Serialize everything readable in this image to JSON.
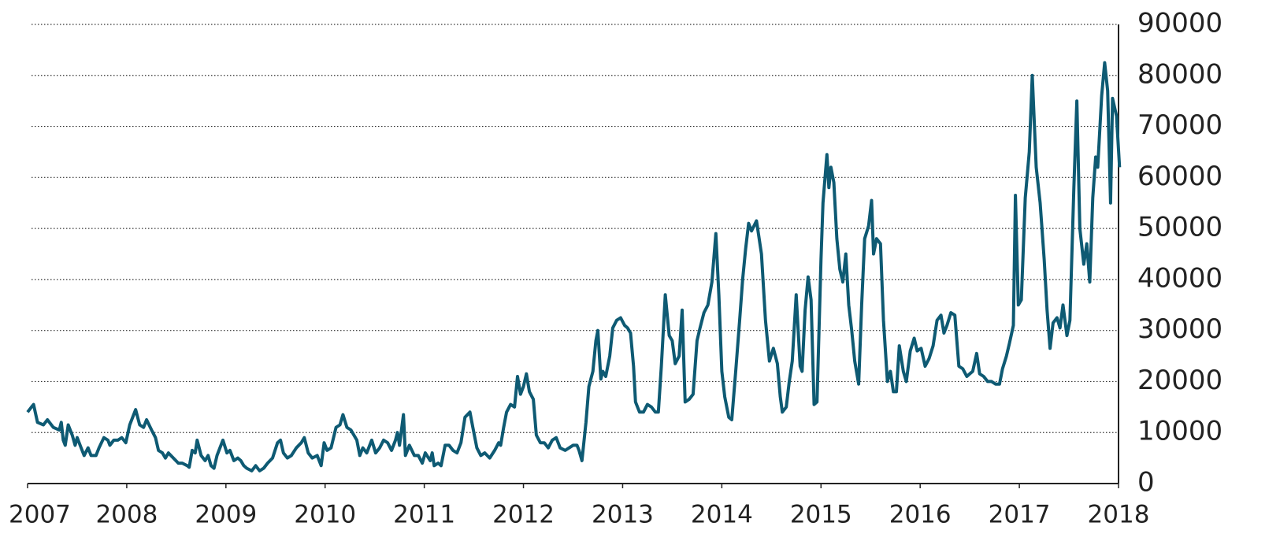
{
  "chart_data": {
    "type": "line",
    "x": [
      2007,
      2007.04,
      2007.06,
      2007.1,
      2007.16,
      2007.2,
      2007.26,
      2007.32,
      2007.34,
      2007.36,
      2007.38,
      2007.41,
      2007.45,
      2007.48,
      2007.5,
      2007.54,
      2007.57,
      2007.61,
      2007.64,
      2007.69,
      2007.72,
      2007.77,
      2007.81,
      2007.83,
      2007.87,
      2007.91,
      2007.95,
      2007.99,
      2008.03,
      2008.09,
      2008.13,
      2008.17,
      2008.2,
      2008.25,
      2008.29,
      2008.32,
      2008.36,
      2008.39,
      2008.42,
      2008.47,
      2008.52,
      2008.56,
      2008.61,
      2008.63,
      2008.66,
      2008.69,
      2008.71,
      2008.75,
      2008.79,
      2008.82,
      2008.85,
      2008.88,
      2008.91,
      2008.97,
      2009.01,
      2009.04,
      2009.08,
      2009.12,
      2009.15,
      2009.18,
      2009.21,
      2009.26,
      2009.3,
      2009.34,
      2009.38,
      2009.42,
      2009.47,
      2009.52,
      2009.55,
      2009.58,
      2009.62,
      2009.66,
      2009.71,
      2009.76,
      2009.79,
      2009.83,
      2009.87,
      2009.92,
      2009.96,
      2009.99,
      2010.02,
      2010.06,
      2010.11,
      2010.15,
      2010.18,
      2010.22,
      2010.26,
      2010.32,
      2010.35,
      2010.38,
      2010.42,
      2010.47,
      2010.51,
      2010.55,
      2010.59,
      2010.63,
      2010.67,
      2010.71,
      2010.73,
      2010.75,
      2010.79,
      2010.81,
      2010.85,
      2010.9,
      2010.94,
      2010.98,
      2011.01,
      2011.06,
      2011.08,
      2011.1,
      2011.14,
      2011.17,
      2011.21,
      2011.25,
      2011.29,
      2011.33,
      2011.37,
      2011.41,
      2011.46,
      2011.49,
      2011.53,
      2011.57,
      2011.61,
      2011.66,
      2011.71,
      2011.75,
      2011.77,
      2011.8,
      2011.83,
      2011.87,
      2011.91,
      2011.94,
      2011.97,
      2012.0,
      2012.03,
      2012.06,
      2012.1,
      2012.13,
      2012.17,
      2012.21,
      2012.25,
      2012.29,
      2012.33,
      2012.37,
      2012.42,
      2012.46,
      2012.5,
      2012.54,
      2012.56,
      2012.59,
      2012.63,
      2012.66,
      2012.7,
      2012.73,
      2012.75,
      2012.78,
      2012.8,
      2012.83,
      2012.87,
      2012.9,
      2012.94,
      2012.98,
      2013.02,
      2013.05,
      2013.08,
      2013.11,
      2013.13,
      2013.17,
      2013.21,
      2013.25,
      2013.29,
      2013.33,
      2013.36,
      2013.39,
      2013.43,
      2013.47,
      2013.5,
      2013.53,
      2013.57,
      2013.6,
      2013.63,
      2013.67,
      2013.71,
      2013.75,
      2013.78,
      2013.82,
      2013.86,
      2013.9,
      2013.94,
      2013.97,
      2014.0,
      2014.03,
      2014.07,
      2014.1,
      2014.14,
      2014.18,
      2014.21,
      2014.24,
      2014.27,
      2014.3,
      2014.35,
      2014.4,
      2014.44,
      2014.48,
      2014.52,
      2014.56,
      2014.59,
      2014.61,
      2014.65,
      2014.68,
      2014.71,
      2014.75,
      2014.79,
      2014.81,
      2014.84,
      2014.87,
      2014.9,
      2014.93,
      2014.96,
      2015.0,
      2015.02,
      2015.06,
      2015.08,
      2015.1,
      2015.13,
      2015.16,
      2015.19,
      2015.22,
      2015.25,
      2015.28,
      2015.31,
      2015.34,
      2015.38,
      2015.41,
      2015.44,
      2015.48,
      2015.51,
      2015.53,
      2015.56,
      2015.6,
      2015.63,
      2015.67,
      2015.7,
      2015.73,
      2015.76,
      2015.79,
      2015.83,
      2015.86,
      2015.9,
      2015.94,
      2015.97,
      2016.01,
      2016.05,
      2016.09,
      2016.13,
      2016.17,
      2016.21,
      2016.24,
      2016.27,
      2016.31,
      2016.35,
      2016.39,
      2016.43,
      2016.47,
      2016.5,
      2016.53,
      2016.57,
      2016.6,
      2016.64,
      2016.68,
      2016.72,
      2016.76,
      2016.8,
      2016.83,
      2016.87,
      2016.9,
      2016.94,
      2016.96,
      2016.99,
      2017.02,
      2017.06,
      2017.1,
      2017.13,
      2017.17,
      2017.21,
      2017.25,
      2017.28,
      2017.31,
      2017.34,
      2017.38,
      2017.41,
      2017.44,
      2017.48,
      2017.51,
      2017.55,
      2017.58,
      2017.61,
      2017.65,
      2017.68,
      2017.71,
      2017.74,
      2017.77,
      2017.79,
      2017.83,
      2017.86,
      2017.89,
      2017.92,
      2017.94,
      2017.98,
      2018.01
    ],
    "series": [
      {
        "color": "#0e5a73",
        "values": [
          14000,
          15000,
          15500,
          12000,
          11500,
          12500,
          11000,
          10500,
          12000,
          8500,
          7500,
          11500,
          9500,
          7500,
          9000,
          7000,
          5500,
          7000,
          5500,
          5500,
          7000,
          9000,
          8500,
          7500,
          8500,
          8500,
          9000,
          8000,
          11500,
          14500,
          11500,
          11000,
          12500,
          10500,
          9000,
          6500,
          6000,
          5000,
          6000,
          5000,
          4000,
          4000,
          3500,
          3200,
          6500,
          6000,
          8500,
          5500,
          4500,
          5500,
          3500,
          3000,
          5500,
          8500,
          6000,
          6500,
          4500,
          5000,
          4500,
          3500,
          3000,
          2500,
          3500,
          2500,
          3000,
          4000,
          5000,
          8000,
          8500,
          6000,
          5000,
          5500,
          7000,
          8000,
          9000,
          6000,
          5000,
          5500,
          3500,
          8000,
          6500,
          7000,
          11000,
          11500,
          13500,
          11000,
          10500,
          8500,
          5500,
          7000,
          6000,
          8500,
          6000,
          7000,
          8500,
          8000,
          6500,
          8500,
          10000,
          7500,
          13500,
          5500,
          7500,
          5500,
          5500,
          4000,
          6000,
          4500,
          6000,
          3500,
          4000,
          3500,
          7500,
          7500,
          6500,
          6000,
          8000,
          13000,
          14000,
          11000,
          7000,
          5500,
          6000,
          5000,
          6500,
          8000,
          7500,
          11000,
          14000,
          15500,
          15000,
          21000,
          17500,
          19000,
          21500,
          18000,
          16500,
          9500,
          8000,
          8000,
          7000,
          8500,
          9000,
          7000,
          6500,
          7000,
          7500,
          7500,
          6500,
          4500,
          12000,
          19000,
          22000,
          28000,
          30000,
          20500,
          22000,
          21000,
          25000,
          30500,
          32000,
          32500,
          31000,
          30500,
          29500,
          23000,
          16000,
          14000,
          14000,
          15500,
          15000,
          14000,
          14000,
          23000,
          37000,
          29000,
          28000,
          23500,
          25000,
          34000,
          16000,
          16500,
          17500,
          28000,
          30500,
          33500,
          35000,
          39500,
          49000,
          37000,
          22000,
          17000,
          13000,
          12500,
          22000,
          32000,
          40000,
          46000,
          51000,
          49500,
          51500,
          45000,
          32000,
          24000,
          26500,
          23500,
          17000,
          14000,
          15000,
          20000,
          24000,
          37000,
          23000,
          22000,
          34000,
          40500,
          36000,
          15500,
          16000,
          44000,
          55000,
          64500,
          58000,
          62000,
          59000,
          48000,
          42000,
          39500,
          45000,
          35000,
          30000,
          24000,
          19500,
          35000,
          48000,
          50500,
          55500,
          45000,
          48000,
          47000,
          32000,
          20000,
          22000,
          18000,
          18000,
          27000,
          22000,
          20000,
          26000,
          28500,
          26000,
          26500,
          23000,
          24500,
          27000,
          32000,
          33000,
          29500,
          31000,
          33500,
          33000,
          23000,
          22500,
          21000,
          21500,
          22000,
          25500,
          21500,
          21000,
          20000,
          20000,
          19500,
          19500,
          22500,
          25000,
          27500,
          31000,
          56500,
          35000,
          36000,
          56000,
          65000,
          80000,
          62000,
          55000,
          44000,
          34000,
          26500,
          31500,
          32500,
          30500,
          35000,
          29000,
          32000,
          58000,
          75000,
          50000,
          43000,
          47000,
          39500,
          56000,
          64000,
          62000,
          76000,
          82500,
          77000,
          55000,
          75500,
          72000,
          62000
        ]
      }
    ],
    "xlim": [
      2007,
      2018
    ],
    "xticks": [
      2007,
      2008,
      2009,
      2010,
      2011,
      2012,
      2013,
      2014,
      2015,
      2016,
      2017,
      2018
    ],
    "ylim": [
      0,
      90000
    ],
    "yticks": [
      0,
      10000,
      20000,
      30000,
      40000,
      50000,
      60000,
      70000,
      80000,
      90000
    ],
    "grid": true
  }
}
